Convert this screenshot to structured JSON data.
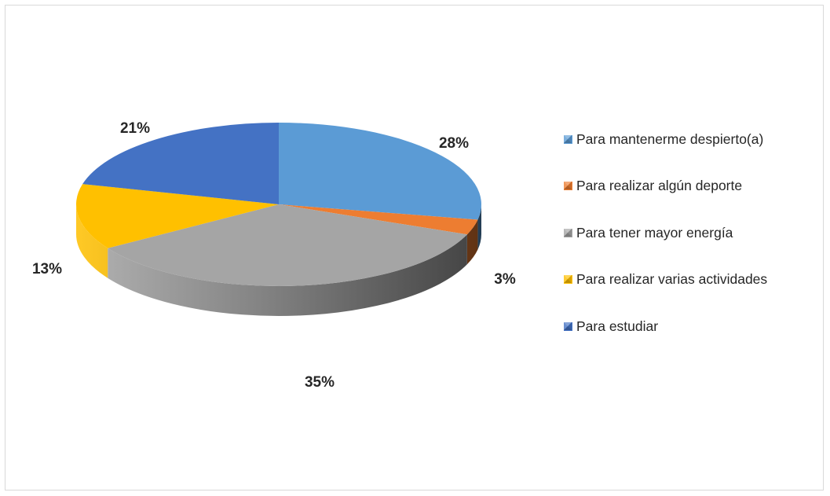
{
  "chart_data": {
    "type": "pie",
    "title": "",
    "legend_position": "right",
    "three_d": true,
    "slices": [
      {
        "label": "Para mantenerme despierto(a)",
        "value": 28,
        "value_label": "28%",
        "color": "#5b9bd5"
      },
      {
        "label": "Para realizar algún deporte",
        "value": 3,
        "value_label": "3%",
        "color": "#ed7d31"
      },
      {
        "label": "Para tener mayor energía",
        "value": 35,
        "value_label": "35%",
        "color": "#a5a5a5"
      },
      {
        "label": "Para realizar varias actividades",
        "value": 13,
        "value_label": "13%",
        "color": "#ffc000"
      },
      {
        "label": "Para estudiar",
        "value": 21,
        "value_label": "21%",
        "color": "#4472c4"
      }
    ]
  }
}
